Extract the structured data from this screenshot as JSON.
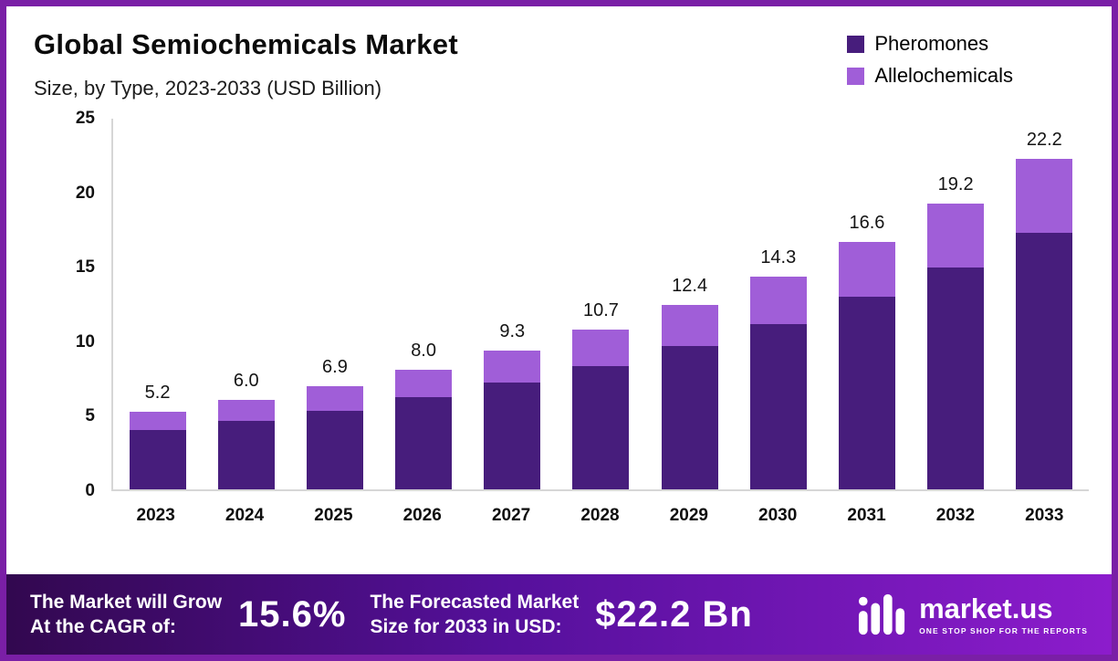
{
  "header": {
    "title": "Global Semiochemicals Market",
    "subtitle": "Size, by Type, 2023-2033 (USD Billion)"
  },
  "legend": [
    {
      "label": "Pheromones",
      "color": "#471d7c"
    },
    {
      "label": "Allelochemicals",
      "color": "#a05ed8"
    }
  ],
  "chart_data": {
    "type": "bar",
    "stacked": true,
    "title": "Global Semiochemicals Market Size, by Type, 2023-2033 (USD Billion)",
    "categories": [
      "2023",
      "2024",
      "2025",
      "2026",
      "2027",
      "2028",
      "2029",
      "2030",
      "2031",
      "2032",
      "2033"
    ],
    "series": [
      {
        "name": "Pheromones",
        "color": "#471d7c",
        "values": [
          4.0,
          4.6,
          5.3,
          6.2,
          7.2,
          8.3,
          9.6,
          11.1,
          12.9,
          14.9,
          17.2
        ]
      },
      {
        "name": "Allelochemicals",
        "color": "#a05ed8",
        "values": [
          1.2,
          1.4,
          1.6,
          1.8,
          2.1,
          2.4,
          2.8,
          3.2,
          3.7,
          4.3,
          5.0
        ]
      }
    ],
    "totals": [
      5.2,
      6.0,
      6.9,
      8.0,
      9.3,
      10.7,
      12.4,
      14.3,
      16.6,
      19.2,
      22.2
    ],
    "total_labels": [
      "5.2",
      "6.0",
      "6.9",
      "8.0",
      "9.3",
      "10.7",
      "12.4",
      "14.3",
      "16.6",
      "19.2",
      "22.2"
    ],
    "xlabel": "",
    "ylabel": "",
    "ylim": [
      0,
      25
    ],
    "yticks": [
      0,
      5,
      10,
      15,
      20,
      25
    ],
    "grid": false,
    "legend_position": "top-right"
  },
  "footer": {
    "cagr_label_line1": "The Market will Grow",
    "cagr_label_line2": "At the CAGR of:",
    "cagr_value": "15.6%",
    "forecast_label_line1": "The Forecasted Market",
    "forecast_label_line2": "Size for 2033 in USD:",
    "forecast_value": "$22.2 Bn",
    "brand_name": "market.us",
    "brand_tagline": "ONE STOP SHOP FOR THE REPORTS"
  }
}
